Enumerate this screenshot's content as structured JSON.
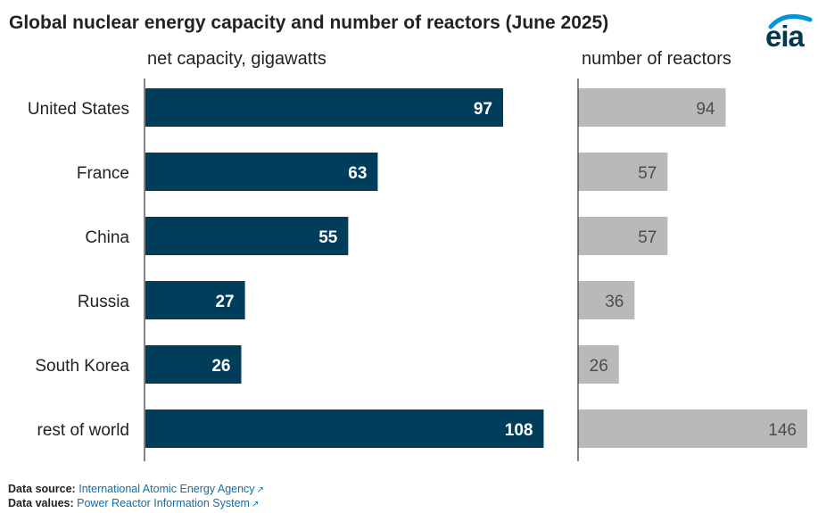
{
  "title": "Global nuclear energy capacity and number of reactors (June 2025)",
  "logo_text": "eia",
  "footer": {
    "source_label": "Data source:",
    "source_text": "International Atomic Energy Agency",
    "values_label": "Data values:",
    "values_text": "Power Reactor Information System"
  },
  "colors": {
    "capacity": "#003d5b",
    "reactors": "#b9b9b9",
    "reactor_label": "#4d4d4d"
  },
  "chart_data": [
    {
      "type": "bar",
      "orientation": "horizontal",
      "title": "net capacity, gigawatts",
      "categories": [
        "United States",
        "France",
        "China",
        "Russia",
        "South Korea",
        "rest of world"
      ],
      "values": [
        97,
        63,
        55,
        27,
        26,
        108
      ],
      "xlim": [
        0,
        112
      ]
    },
    {
      "type": "bar",
      "orientation": "horizontal",
      "title": "number of reactors",
      "categories": [
        "United States",
        "France",
        "China",
        "Russia",
        "South Korea",
        "rest of world"
      ],
      "values": [
        94,
        57,
        57,
        36,
        26,
        146
      ],
      "xlim": [
        0,
        146
      ]
    }
  ]
}
